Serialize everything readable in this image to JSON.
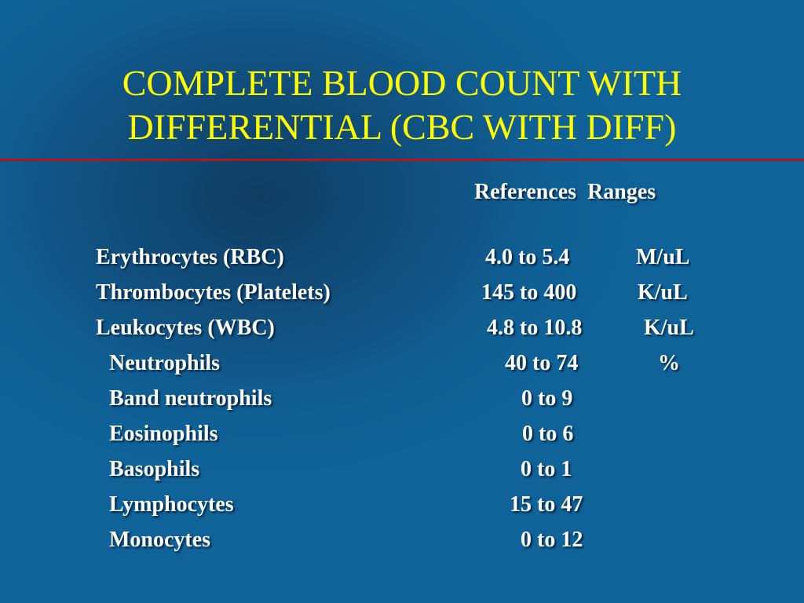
{
  "slide": {
    "title_line1": "COMPLETE BLOOD COUNT WITH",
    "title_line2": "DIFFERENTIAL (CBC WITH DIFF)",
    "accent_color": "#ffff00",
    "rule_color": "#b4141e",
    "background_color": "#0f5f94"
  },
  "table": {
    "header": "References  Ranges",
    "rows": [
      {
        "name": "Erythrocytes (RBC)",
        "range": "4.0 to 5.4",
        "unit": "M/uL"
      },
      {
        "name": "Thrombocytes (Platelets)",
        "range": "145 to 400",
        "unit": "K/uL"
      },
      {
        "name": "Leukocytes (WBC)",
        "range": "4.8 to 10.8",
        "unit": "K/uL"
      },
      {
        "name": "Neutrophils",
        "range": "40 to 74",
        "unit": "%"
      },
      {
        "name": "Band neutrophils",
        "range": "0 to 9",
        "unit": ""
      },
      {
        "name": "Eosinophils",
        "range": "0 to 6",
        "unit": ""
      },
      {
        "name": "Basophils",
        "range": "0 to 1",
        "unit": ""
      },
      {
        "name": "Lymphocytes",
        "range": "15 to 47",
        "unit": ""
      },
      {
        "name": "Monocytes",
        "range": "0 to 12",
        "unit": ""
      }
    ]
  }
}
